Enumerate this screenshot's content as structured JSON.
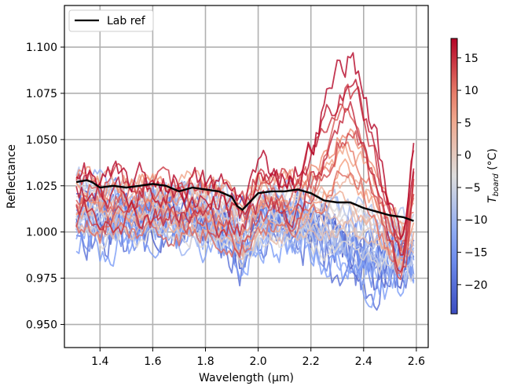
{
  "chart_data": {
    "type": "line",
    "xlabel": "Wavelength (µm)",
    "ylabel": "Reflectance",
    "xlim": [
      1.265,
      2.645
    ],
    "ylim": [
      0.9375,
      1.1225
    ],
    "xticks": [
      1.4,
      1.6,
      1.8,
      2.0,
      2.2,
      2.4,
      2.6
    ],
    "xtick_labels": [
      "1.4",
      "1.6",
      "1.8",
      "2.0",
      "2.2",
      "2.4",
      "2.6"
    ],
    "yticks": [
      0.95,
      0.975,
      1.0,
      1.025,
      1.05,
      1.075,
      1.1
    ],
    "ytick_labels": [
      "0.950",
      "0.975",
      "1.000",
      "1.025",
      "1.050",
      "1.075",
      "1.100"
    ],
    "grid": true,
    "legend": {
      "location": "top-left",
      "entries": [
        {
          "label": "Lab ref",
          "color": "#000000"
        }
      ]
    },
    "colorbar": {
      "label": "T_board (°C)",
      "label_main": "T",
      "label_sub": "board",
      "label_unit": " (°C)",
      "cmap": "coolwarm",
      "vmin": -24.5,
      "vmax": 18,
      "ticks": [
        -20,
        -15,
        -10,
        -5,
        0,
        5,
        10,
        15
      ],
      "tick_labels": [
        "−20",
        "−15",
        "−10",
        "−5",
        "0",
        "5",
        "10",
        "15"
      ]
    },
    "reference_series": {
      "name": "Lab ref",
      "color": "#000000",
      "x": [
        1.31,
        1.35,
        1.37,
        1.4,
        1.45,
        1.5,
        1.55,
        1.6,
        1.65,
        1.7,
        1.75,
        1.8,
        1.85,
        1.9,
        1.92,
        1.94,
        1.96,
        1.98,
        2.0,
        2.05,
        2.1,
        2.15,
        2.2,
        2.25,
        2.3,
        2.35,
        2.4,
        2.45,
        2.5,
        2.55,
        2.59
      ],
      "y": [
        1.027,
        1.028,
        1.027,
        1.024,
        1.025,
        1.024,
        1.025,
        1.026,
        1.025,
        1.022,
        1.024,
        1.023,
        1.022,
        1.019,
        1.014,
        1.012,
        1.015,
        1.018,
        1.021,
        1.022,
        1.022,
        1.023,
        1.021,
        1.017,
        1.016,
        1.016,
        1.013,
        1.011,
        1.009,
        1.008,
        1.006
      ]
    },
    "series_family": {
      "x_range": [
        1.31,
        2.59
      ],
      "x_step": 0.01,
      "count": 36,
      "colored_by": "T_board",
      "temperature_min": -24,
      "temperature_max": 18,
      "approx_y_bounds": [
        0.946,
        1.115
      ]
    }
  }
}
